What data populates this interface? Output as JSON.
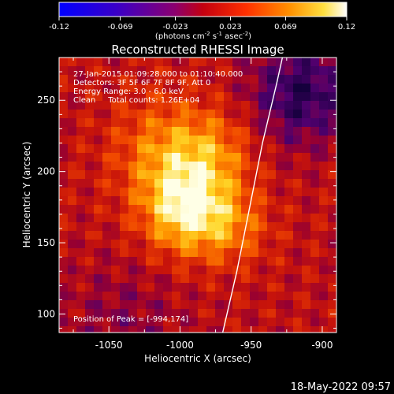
{
  "colorbar": {
    "ticks": [
      -0.12,
      -0.069,
      -0.023,
      0.023,
      0.069,
      0.12
    ],
    "tick_labels": [
      "-0.12",
      "-0.069",
      "-0.023",
      "0.023",
      "0.069",
      "0.12"
    ],
    "units_main": "(photons cm",
    "units_exp1": "-2",
    "units_mid1": " s",
    "units_exp2": "-1",
    "units_mid2": " asec",
    "units_exp3": "-2",
    "units_end": ")",
    "colormap": "red-temperature (blue → purple → red → orange → yellow → white)"
  },
  "chart_data": {
    "type": "heatmap",
    "title": "Reconstructed RHESSI Image",
    "xlabel": "Heliocentric X (arcsec)",
    "ylabel": "Heliocentric Y (arcsec)",
    "xlim": [
      -1085,
      -890
    ],
    "ylim": [
      87,
      280
    ],
    "x_ticks": [
      -1050,
      -1000,
      -950,
      -900
    ],
    "x_tick_labels": [
      "-1050",
      "-1000",
      "-950",
      "-900"
    ],
    "y_ticks": [
      100,
      150,
      200,
      250
    ],
    "y_tick_labels": [
      "100",
      "150",
      "200",
      "250"
    ],
    "peak_position": [
      -994,
      174
    ],
    "limb_line": [
      [
        -970,
        87
      ],
      [
        -960,
        130
      ],
      [
        -950,
        180
      ],
      [
        -942,
        220
      ],
      [
        -932,
        262
      ],
      [
        -928,
        280
      ]
    ],
    "info_lines": [
      "27-Jan-2015 01:09:28.000 to 01:10:40.000",
      "Detectors: 3F 5F 6F 7F 8F 9F, Att 0",
      "Energy Range: 3.0 - 6.0 keV",
      "Clean     Total counts: 1.26E+04"
    ],
    "peak_label": "Position of Peak = [-994,174]"
  },
  "footer": {
    "timestamp": "18-May-2022 09:57"
  }
}
